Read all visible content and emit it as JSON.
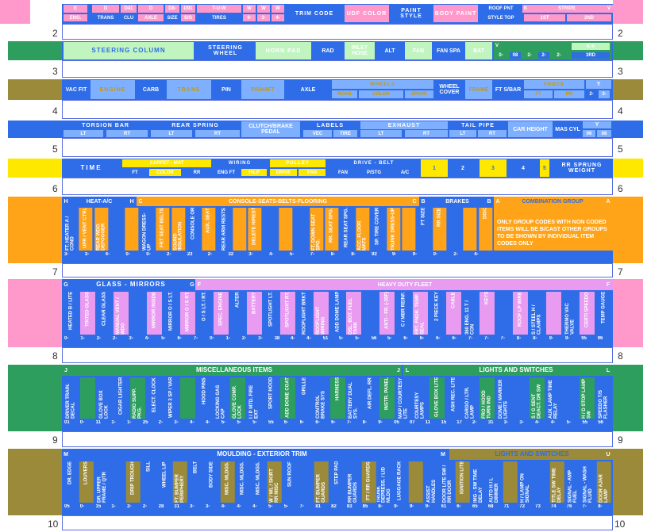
{
  "colors": {
    "blue": "#2f6de8",
    "light_blue": "#7fb0ff",
    "cyan": "#35d6f2",
    "pink": "#ff99cc",
    "magenta": "#e89bf0",
    "yellow": "#ffe800",
    "orange": "#ffa319",
    "olive": "#9a8a3a",
    "green": "#2e9e5e",
    "light_green": "#c0f5c0",
    "gold": "#c89800"
  },
  "row1": {
    "labels": [
      "E",
      "D",
      "D41",
      "D",
      "D8-",
      "D91",
      "T-U-W",
      "W",
      "W",
      "W",
      "TRIM CODE",
      "UDF COLOR",
      "PAINT STYLE",
      "BODY PAINT",
      "ROOF PNT",
      "K",
      "STRIPE",
      "V"
    ],
    "sublabels": [
      "ENG.",
      "TRANS",
      "CLU",
      "AXLE",
      "SIZE",
      "S/G",
      "TIRES",
      "0-",
      "3-",
      "4-",
      "STYLE TOP",
      "1ST",
      "2ND"
    ],
    "row_num": "2"
  },
  "row2": {
    "labels": [
      "STEERING COLUMN",
      "STEERING WHEEL",
      "HORN PAD",
      "RAD",
      "INLET HOSE",
      "ALT",
      "FAN",
      "FAN SPA",
      "BAT",
      "V",
      "K-V"
    ],
    "codes": [
      "0-",
      "08",
      "2-",
      "2-",
      "2-",
      "3RD"
    ],
    "row_num": "3"
  },
  "row3": {
    "labels": [
      "VAC FIT",
      "ENGINE",
      "CARB",
      "TRANS",
      "PIN",
      "P/SHAFT",
      "AXLE",
      "WHEELS",
      "WHEEL COVER",
      "FRAME",
      "FT S/BAR",
      "SHOCK",
      "Y"
    ],
    "sublabels": [
      "ROAD",
      "COLOR",
      "SPARE",
      "FT",
      "RR"
    ],
    "codes": [
      "2-",
      "3-"
    ],
    "row_num": "4"
  },
  "row4": {
    "labels": [
      "TORSION BAR",
      "REAR SPRING",
      "CLUTCH/BRAKE PEDAL",
      "LABELS",
      "EXHAUST",
      "TAIL PIPE",
      "CAR HEIGHT",
      "MAS CYL",
      "Y"
    ],
    "sublabels": [
      "LT",
      "RT",
      "LT",
      "RT",
      "VEC",
      "TIRE",
      "LT",
      "RT",
      "LT",
      "RT"
    ],
    "codes": [
      "06",
      "08"
    ],
    "row_num": "5"
  },
  "row5": {
    "labels": [
      "TIME",
      "CARPET - MAT",
      "WIRING",
      "PULLEY",
      "DRIVE - BELT",
      "1",
      "2",
      "3",
      "4",
      "5",
      "RR SPRUNG WEIGHT"
    ],
    "sublabels": [
      "FT",
      "COLOR",
      "RR",
      "ENG FT",
      "H/LP",
      "DRIVE",
      "FAN",
      "FAN",
      "P/STG",
      "A/C"
    ],
    "row_num": "6"
  },
  "row6": {
    "headers": [
      "H",
      "HEAT-A/C",
      "H",
      "C",
      "CONSOLE-SEATS-BELTS-FLOORING",
      "C",
      "B",
      "BRAKES",
      "B",
      "A",
      "COMBINATION GROUP",
      "A"
    ],
    "items": [
      "FT. HEATER A / COND",
      "UPR / VENT CTRL",
      "REAR WDO. DEFOGGER",
      "",
      "",
      "WAGON DRESS-UP",
      "FRT SEAT BELTS",
      "SOUND INSULATION",
      "CONSOLE OR",
      "AUX. SEAT",
      "REAR ARM RESTS",
      "",
      "DELETE H/REST",
      "",
      "",
      "",
      "FT. DOWN SEAT SPG.",
      "RR. SEAT SPG.",
      "REAR SEAT SPG.",
      "ACC. FLOOR MATS",
      "SP. TIRE COVER",
      "TRUNK DRESS-UP",
      "",
      "FT SIZE",
      "RR SIZE",
      "",
      "",
      "DISC"
    ],
    "codes": [
      "3-",
      "3-",
      "4-",
      "0-",
      "0-",
      "2-",
      "23",
      "2-",
      "32",
      "3-",
      "4-",
      "5-",
      "7-",
      "8-",
      "8-",
      "92",
      "9-",
      "9-",
      "0-",
      "2-",
      "4-"
    ],
    "note": "ONLY GROUP CODES WITH NON CODED ITEMS WILL BE B/CAST OTHER GROUPS TO BE SHOWN BY INDIVIDUAL ITEM CODES ONLY",
    "row_num": "7"
  },
  "row7": {
    "headers": [
      "G",
      "GLASS - MIRRORS",
      "G",
      "F",
      "HEAVY DUTY FLEET",
      "F"
    ],
    "items": [
      "HEATED B / LITE",
      "TINTED GLASS",
      "CLEAR GLASS",
      "MANUAL VENT / WDO",
      "",
      "MIRROR INSIDE",
      "MIRROR O / S LT.",
      "MIRROR O / S RT.",
      "O / S LT. / RT.",
      "SPEC. ENGINE",
      "ALTER",
      "BATTERY",
      "SPOTLIGHT LT.",
      "SPOTLIGHT RT.",
      "ROOFLIGHT BRKT",
      "ROOFLIGHT WIRING",
      "ADD DOME LAMP",
      "DSL. BOT. FUEL TANK",
      "",
      "ANTI - FR. (-35F)",
      "C / MBR REINF.",
      "FRT. FNDR. TEMP SEAL",
      "2 PIECE KEY",
      "CABLE",
      "360 ENG. 11 T / CON",
      "KEYS",
      "",
      "ROOF LP WIRE",
      "S / STEEL H / CLAMPS",
      "",
      "THERMO VAC VALVE",
      "CERTI SPEEDO",
      "TEMP GAUGE"
    ],
    "codes": [
      "0-",
      "1-",
      "2-",
      "2-",
      "3-",
      "4-",
      "5-",
      "6-",
      "7-",
      "0-",
      "1-",
      "2-",
      "3-",
      "38",
      "4-",
      "4-",
      "51",
      "5-",
      "5-",
      "56",
      "5-",
      "6-",
      "6-",
      "6-",
      "6-",
      "7-",
      "7-",
      "7-",
      "8-",
      "8-",
      "9-",
      "9-",
      "95",
      "96"
    ],
    "row_num": "8"
  },
  "row8": {
    "headers": [
      "J",
      "MISCELLANEOUS ITEMS",
      "J",
      "L",
      "LIGHTS AND SWITCHES",
      "L"
    ],
    "items": [
      "DRIVER TRAIN. DECAL",
      "",
      "GLOVE BOX LOCK",
      "CIGAR LIGHTER",
      "RADIO SUPP. PKG.",
      "ELECT. CLOCK",
      "WIPER 3 SP / VAR",
      "",
      "HOOD PINS",
      "LOCKING GAS CAP",
      "GLOVE COMP. LOCK",
      "I / P MTD. FIRE EXT",
      "SPORT HOOD",
      "ADD DOME COAT",
      "GRILLE",
      "CONTROL BRAKE SYS",
      "HARNESS",
      "BATTERY DUAL SYS.",
      "AIR DEFL. RR",
      "INSTR. PANEL",
      "MAP / COURTESY LITE",
      "COURTESY LAMPS",
      "GLOVE BOX LITE",
      "ASH REC. LITE",
      "CARGO / LTR. LAMP",
      "FRO / HOOD TURN IND",
      "DOME / MARKER LIGHTS",
      "",
      "S / G SENT DEACT. DR SW",
      "AUX. LAMP TIME RELAY",
      "",
      "H / D STOP LAMP SW",
      "SPEEDO T/S FLASHER"
    ],
    "codes": [
      "01",
      "0-",
      "11",
      "1-",
      "1-",
      "25",
      "2-",
      "3-",
      "4-",
      "4-",
      "5-",
      "5-",
      "5-",
      "55",
      "6-",
      "6-",
      "6-",
      "6-",
      "7-",
      "8-",
      "9-",
      "05",
      "07",
      "11",
      "15",
      "17",
      "2-",
      "31",
      "3-",
      "3-",
      "4-",
      "4-",
      "5-",
      "55",
      "56"
    ],
    "row_num": "9"
  },
  "row9": {
    "headers": [
      "M",
      "MOULDING - EXTERIOR TRIM",
      "M",
      "LIGHTS AND SWITCHES",
      "U"
    ],
    "items": [
      "DR. EDGE",
      "LOUVERS",
      "DR. UPPER FRAME / QTR",
      "",
      "DRIP TROUGH",
      "SILL",
      "WHEEL LIP",
      "FT. BUMPER PERIPHERY",
      "BELT",
      "BODY SIDE",
      "MISC. MLDGS.",
      "MISC. MLDGS.",
      "MISC. MLDGS.",
      "W / WL / SKIRT RR MISC",
      "SUN ROOF",
      "",
      "FT. BUMPER GUARDS",
      "STEP PAD",
      "RR BUMPER GUARDS",
      "FT / RR GUARDS",
      "TRUNK DEPRESS. / LID MLDG",
      "LUGGAGE RACK",
      "",
      "ASSIST HANDLES",
      "DOOR LITE SW / RR DOOR",
      "IGNITION LITE",
      "IMG - SW TIME DELAY",
      "AUTO H / L DIMMER",
      "",
      "H / LAMP ON SIGNAL",
      "",
      "TITLE SW TIME DELAY",
      "SIGNAL - AMP FUEL",
      "SIGNAL - WASH FLUID",
      "DOOR AJAR LAMP"
    ],
    "codes": [
      "05",
      "0-",
      "15",
      "1-",
      "2-",
      "2-",
      "28",
      "31",
      "3-",
      "3-",
      "4-",
      "4-",
      "4-",
      "5-",
      "5-",
      "7-",
      "81",
      "82",
      "83",
      "85",
      "8-",
      "9-",
      "9-",
      "9-",
      "61",
      "6-",
      "65",
      "68",
      "71",
      "72",
      "73",
      "74",
      "76",
      "7-",
      "8-"
    ],
    "row_num": "10"
  }
}
